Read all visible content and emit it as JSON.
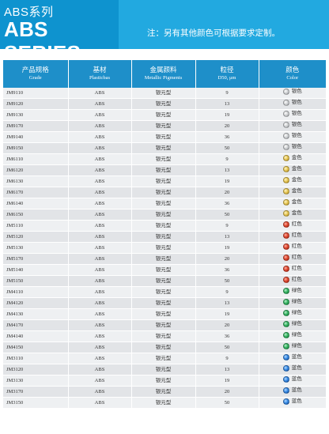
{
  "header": {
    "title_cn": "ABS系列",
    "title_en": "ABS SERIES",
    "note": "注：另有其他颜色可根据要求定制。"
  },
  "table": {
    "columns": [
      {
        "cn": "产品规格",
        "en": "Grade"
      },
      {
        "cn": "基材",
        "en": "Plasticbas"
      },
      {
        "cn": "金属颜料",
        "en": "Metallic Pigments"
      },
      {
        "cn": "粒径",
        "en": "D50, μm"
      },
      {
        "cn": "颜色",
        "en": "Color"
      }
    ],
    "rows": [
      {
        "grade": "JM9110",
        "base": "ABS",
        "pigment": "银元型",
        "d50": "9",
        "color": "银色",
        "swatch": "silver"
      },
      {
        "grade": "JM9120",
        "base": "ABS",
        "pigment": "银元型",
        "d50": "13",
        "color": "银色",
        "swatch": "silver"
      },
      {
        "grade": "JM9130",
        "base": "ABS",
        "pigment": "银元型",
        "d50": "19",
        "color": "银色",
        "swatch": "silver"
      },
      {
        "grade": "JM9170",
        "base": "ABS",
        "pigment": "银元型",
        "d50": "20",
        "color": "银色",
        "swatch": "silver"
      },
      {
        "grade": "JM9140",
        "base": "ABS",
        "pigment": "银元型",
        "d50": "36",
        "color": "银色",
        "swatch": "silver"
      },
      {
        "grade": "JM9150",
        "base": "ABS",
        "pigment": "银元型",
        "d50": "50",
        "color": "银色",
        "swatch": "silver"
      },
      {
        "grade": "JM6110",
        "base": "ABS",
        "pigment": "银元型",
        "d50": "9",
        "color": "金色",
        "swatch": "gold"
      },
      {
        "grade": "JM6120",
        "base": "ABS",
        "pigment": "银元型",
        "d50": "13",
        "color": "金色",
        "swatch": "gold"
      },
      {
        "grade": "JM6130",
        "base": "ABS",
        "pigment": "银元型",
        "d50": "19",
        "color": "金色",
        "swatch": "gold"
      },
      {
        "grade": "JM6170",
        "base": "ABS",
        "pigment": "银元型",
        "d50": "20",
        "color": "金色",
        "swatch": "gold"
      },
      {
        "grade": "JM6140",
        "base": "ABS",
        "pigment": "银元型",
        "d50": "36",
        "color": "金色",
        "swatch": "gold"
      },
      {
        "grade": "JM6150",
        "base": "ABS",
        "pigment": "银元型",
        "d50": "50",
        "color": "金色",
        "swatch": "gold"
      },
      {
        "grade": "JM5110",
        "base": "ABS",
        "pigment": "银元型",
        "d50": "9",
        "color": "红色",
        "swatch": "red"
      },
      {
        "grade": "JM5120",
        "base": "ABS",
        "pigment": "银元型",
        "d50": "13",
        "color": "红色",
        "swatch": "red"
      },
      {
        "grade": "JM5130",
        "base": "ABS",
        "pigment": "银元型",
        "d50": "19",
        "color": "红色",
        "swatch": "red"
      },
      {
        "grade": "JM5170",
        "base": "ABS",
        "pigment": "银元型",
        "d50": "20",
        "color": "红色",
        "swatch": "red"
      },
      {
        "grade": "JM5140",
        "base": "ABS",
        "pigment": "银元型",
        "d50": "36",
        "color": "红色",
        "swatch": "red"
      },
      {
        "grade": "JM5150",
        "base": "ABS",
        "pigment": "银元型",
        "d50": "50",
        "color": "红色",
        "swatch": "red"
      },
      {
        "grade": "JM4110",
        "base": "ABS",
        "pigment": "银元型",
        "d50": "9",
        "color": "绿色",
        "swatch": "green"
      },
      {
        "grade": "JM4120",
        "base": "ABS",
        "pigment": "银元型",
        "d50": "13",
        "color": "绿色",
        "swatch": "green"
      },
      {
        "grade": "JM4130",
        "base": "ABS",
        "pigment": "银元型",
        "d50": "19",
        "color": "绿色",
        "swatch": "green"
      },
      {
        "grade": "JM4170",
        "base": "ABS",
        "pigment": "银元型",
        "d50": "20",
        "color": "绿色",
        "swatch": "green"
      },
      {
        "grade": "JM4140",
        "base": "ABS",
        "pigment": "银元型",
        "d50": "36",
        "color": "绿色",
        "swatch": "green"
      },
      {
        "grade": "JM4150",
        "base": "ABS",
        "pigment": "银元型",
        "d50": "50",
        "color": "绿色",
        "swatch": "green"
      },
      {
        "grade": "JM3110",
        "base": "ABS",
        "pigment": "银元型",
        "d50": "9",
        "color": "蓝色",
        "swatch": "blue"
      },
      {
        "grade": "JM3120",
        "base": "ABS",
        "pigment": "银元型",
        "d50": "13",
        "color": "蓝色",
        "swatch": "blue"
      },
      {
        "grade": "JM3130",
        "base": "ABS",
        "pigment": "银元型",
        "d50": "19",
        "color": "蓝色",
        "swatch": "blue"
      },
      {
        "grade": "JM3170",
        "base": "ABS",
        "pigment": "银元型",
        "d50": "20",
        "color": "蓝色",
        "swatch": "blue"
      },
      {
        "grade": "JM3150",
        "base": "ABS",
        "pigment": "银元型",
        "d50": "50",
        "color": "蓝色",
        "swatch": "blue"
      }
    ]
  }
}
